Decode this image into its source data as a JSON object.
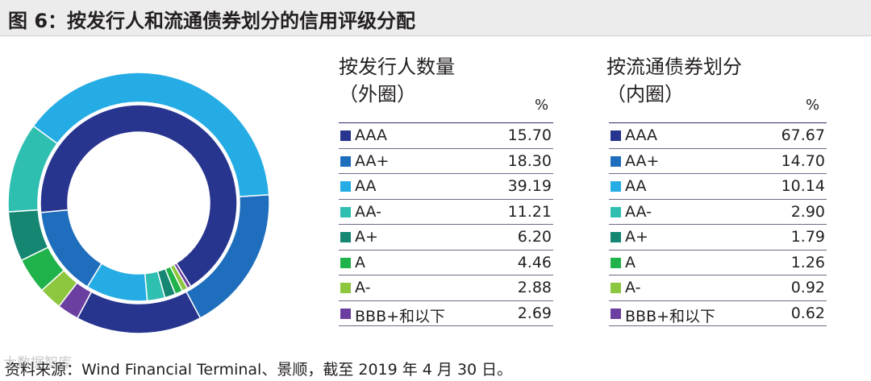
{
  "title": "图 6：按发行人和流通债券划分的信用评级分配",
  "source": "资料来源：Wind Financial Terminal、景顺，截至 2019 年 4 月 30 日。",
  "watermark": "大数据智库",
  "chart_data": {
    "type": "pie",
    "subtype": "nested-donut",
    "categories": [
      "AAA",
      "AA+",
      "AA",
      "AA-",
      "A+",
      "A",
      "A-",
      "BBB+和以下"
    ],
    "colors": [
      "#27358f",
      "#1f6ebd",
      "#25ace4",
      "#2ebfb0",
      "#148672",
      "#20b24b",
      "#8dc63f",
      "#6b3fa0"
    ],
    "series": [
      {
        "name": "按发行人数量（外圈）",
        "ring": "outer",
        "title_line1": "按发行人数量",
        "title_line2": "（外圈）",
        "unit": "%",
        "values": [
          "15.70",
          "18.30",
          "39.19",
          "11.21",
          "6.20",
          "4.46",
          "2.88",
          "2.69"
        ]
      },
      {
        "name": "按流通债券划分（内圈）",
        "ring": "inner",
        "title_line1": "按流通债券划分",
        "title_line2": "（内圈）",
        "unit": "%",
        "values": [
          "67.67",
          "14.70",
          "10.14",
          "2.90",
          "1.79",
          "1.26",
          "0.92",
          "0.62"
        ]
      }
    ]
  }
}
